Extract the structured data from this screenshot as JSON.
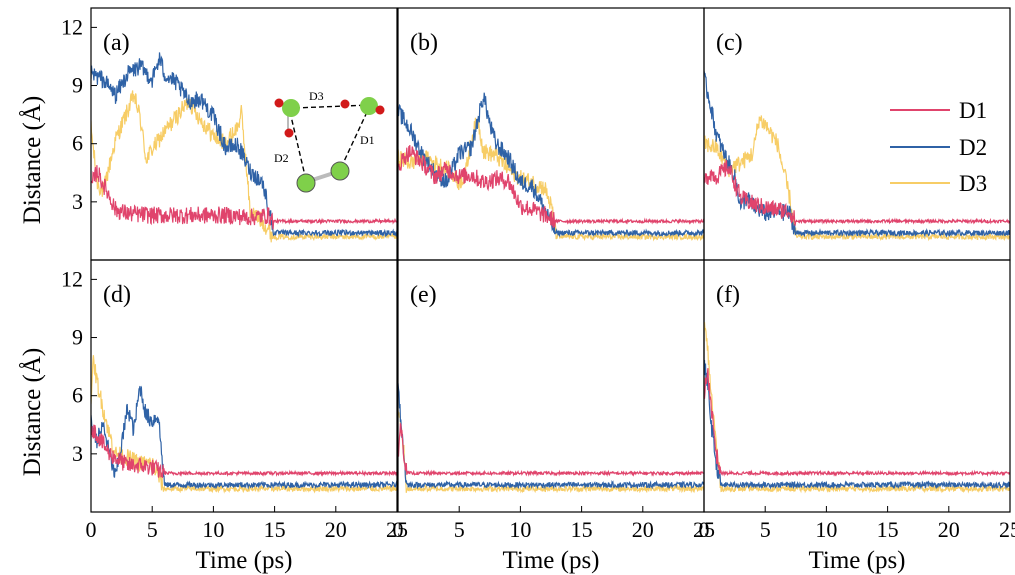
{
  "chart_data": {
    "type": "line",
    "layout": "2x3 grid of panels sharing axes",
    "xlabel": "Time (ps)",
    "ylabel": "Distance (Å)",
    "xlim": [
      0,
      25
    ],
    "ylim": [
      0,
      13
    ],
    "xticks": [
      0,
      5,
      10,
      15,
      20,
      25
    ],
    "yticks": [
      3,
      6,
      9,
      12
    ],
    "grid": false,
    "legend_placement": "top-right of panel (c)",
    "series_styles": [
      {
        "name": "D1",
        "color": "#e0446c"
      },
      {
        "name": "D2",
        "color": "#2f62a6"
      },
      {
        "name": "D3",
        "color": "#f7cd66"
      }
    ],
    "panels": [
      {
        "label": "(a)",
        "transition_time": 14.9,
        "series": [
          {
            "name": "D1",
            "points": [
              [
                0,
                3.8
              ],
              [
                0.5,
                4.6
              ],
              [
                1,
                3.9
              ],
              [
                1.5,
                3.3
              ],
              [
                2,
                2.6
              ],
              [
                3,
                2.4
              ],
              [
                5,
                2.3
              ],
              [
                8,
                2.3
              ],
              [
                11,
                2.3
              ],
              [
                13,
                2.2
              ],
              [
                14.5,
                2.3
              ],
              [
                14.9,
                2.0
              ],
              [
                25,
                2.0
              ]
            ]
          },
          {
            "name": "D2",
            "points": [
              [
                0,
                9.6
              ],
              [
                1,
                9.3
              ],
              [
                2,
                8.5
              ],
              [
                3,
                9.6
              ],
              [
                4,
                10.0
              ],
              [
                5,
                9.3
              ],
              [
                5.6,
                10.4
              ],
              [
                6,
                9.6
              ],
              [
                7,
                9.1
              ],
              [
                8,
                8.2
              ],
              [
                9,
                8.3
              ],
              [
                10,
                7.4
              ],
              [
                11,
                5.8
              ],
              [
                12,
                5.9
              ],
              [
                13,
                4.6
              ],
              [
                14,
                4.0
              ],
              [
                14.5,
                2.8
              ],
              [
                14.9,
                1.4
              ],
              [
                25,
                1.4
              ]
            ]
          },
          {
            "name": "D3",
            "points": [
              [
                0,
                6.8
              ],
              [
                0.5,
                4.0
              ],
              [
                1,
                3.5
              ],
              [
                2,
                6.2
              ],
              [
                3,
                7.7
              ],
              [
                3.5,
                8.5
              ],
              [
                4,
                7.4
              ],
              [
                4.5,
                5.2
              ],
              [
                5,
                5.7
              ],
              [
                6,
                6.6
              ],
              [
                7,
                7.4
              ],
              [
                8,
                8.2
              ],
              [
                9,
                7.2
              ],
              [
                10,
                6.4
              ],
              [
                11,
                6.0
              ],
              [
                12,
                6.9
              ],
              [
                12.3,
                7.6
              ],
              [
                13,
                2.5
              ],
              [
                14,
                2.0
              ],
              [
                14.9,
                1.2
              ],
              [
                25,
                1.2
              ]
            ]
          }
        ]
      },
      {
        "label": "(b)",
        "transition_time": 12.9,
        "series": [
          {
            "name": "D1",
            "points": [
              [
                0,
                4.8
              ],
              [
                0.5,
                5.3
              ],
              [
                1,
                5.6
              ],
              [
                2,
                5.0
              ],
              [
                3,
                4.3
              ],
              [
                4,
                4.7
              ],
              [
                5,
                4.3
              ],
              [
                6,
                4.4
              ],
              [
                7,
                4.0
              ],
              [
                8,
                4.2
              ],
              [
                9,
                4.1
              ],
              [
                10,
                2.8
              ],
              [
                11,
                2.6
              ],
              [
                12,
                2.3
              ],
              [
                12.9,
                2.0
              ],
              [
                25,
                2.0
              ]
            ]
          },
          {
            "name": "D2",
            "points": [
              [
                0,
                7.7
              ],
              [
                1,
                6.7
              ],
              [
                2,
                5.4
              ],
              [
                3,
                4.5
              ],
              [
                4,
                4.0
              ],
              [
                5,
                5.5
              ],
              [
                6,
                5.8
              ],
              [
                7,
                8.5
              ],
              [
                7.5,
                7.0
              ],
              [
                8,
                6.0
              ],
              [
                9,
                5.3
              ],
              [
                10,
                4.0
              ],
              [
                11,
                3.8
              ],
              [
                12,
                2.6
              ],
              [
                12.6,
                1.8
              ],
              [
                12.9,
                1.4
              ],
              [
                25,
                1.4
              ]
            ]
          },
          {
            "name": "D3",
            "points": [
              [
                0,
                5.3
              ],
              [
                1,
                5.0
              ],
              [
                2,
                5.3
              ],
              [
                3,
                5.0
              ],
              [
                4,
                4.7
              ],
              [
                5,
                4.0
              ],
              [
                5.5,
                4.4
              ],
              [
                6,
                6.2
              ],
              [
                6.5,
                7.3
              ],
              [
                7,
                5.6
              ],
              [
                8,
                5.4
              ],
              [
                9,
                4.7
              ],
              [
                10,
                4.2
              ],
              [
                11,
                4.0
              ],
              [
                12,
                3.7
              ],
              [
                12.6,
                2.6
              ],
              [
                12.9,
                1.2
              ],
              [
                25,
                1.2
              ]
            ]
          }
        ]
      },
      {
        "label": "(c)",
        "transition_time": 7.5,
        "series": [
          {
            "name": "D1",
            "points": [
              [
                0,
                4.0
              ],
              [
                0.5,
                4.5
              ],
              [
                1,
                4.3
              ],
              [
                2,
                4.8
              ],
              [
                3,
                3.2
              ],
              [
                4,
                2.9
              ],
              [
                5,
                2.7
              ],
              [
                6,
                2.6
              ],
              [
                7,
                2.5
              ],
              [
                7.5,
                2.0
              ],
              [
                25,
                2.0
              ]
            ]
          },
          {
            "name": "D2",
            "points": [
              [
                0,
                9.4
              ],
              [
                0.5,
                8.1
              ],
              [
                1,
                6.5
              ],
              [
                1.5,
                5.7
              ],
              [
                2,
                5.0
              ],
              [
                2.5,
                4.3
              ],
              [
                3,
                2.8
              ],
              [
                3.5,
                3.2
              ],
              [
                4,
                2.8
              ],
              [
                5,
                2.4
              ],
              [
                6,
                2.5
              ],
              [
                7,
                2.4
              ],
              [
                7.5,
                1.4
              ],
              [
                25,
                1.4
              ]
            ]
          },
          {
            "name": "D3",
            "points": [
              [
                0,
                6.0
              ],
              [
                1,
                5.8
              ],
              [
                2,
                4.7
              ],
              [
                3,
                5.0
              ],
              [
                4,
                5.5
              ],
              [
                4.5,
                7.3
              ],
              [
                5,
                7.0
              ],
              [
                6,
                6.0
              ],
              [
                7,
                3.2
              ],
              [
                7.5,
                1.2
              ],
              [
                25,
                1.2
              ]
            ]
          }
        ]
      },
      {
        "label": "(d)",
        "transition_time": 6.0,
        "series": [
          {
            "name": "D1",
            "points": [
              [
                0,
                4.4
              ],
              [
                0.5,
                4.0
              ],
              [
                1,
                3.5
              ],
              [
                1.5,
                3.0
              ],
              [
                2,
                2.8
              ],
              [
                3,
                2.4
              ],
              [
                4,
                2.4
              ],
              [
                5,
                2.3
              ],
              [
                6,
                2.0
              ],
              [
                25,
                2.0
              ]
            ]
          },
          {
            "name": "D2",
            "points": [
              [
                0,
                4.6
              ],
              [
                0.5,
                3.7
              ],
              [
                1,
                4.5
              ],
              [
                1.5,
                3.0
              ],
              [
                2,
                1.8
              ],
              [
                2.5,
                3.5
              ],
              [
                3,
                5.4
              ],
              [
                3.5,
                4.2
              ],
              [
                4,
                6.5
              ],
              [
                4.5,
                5.0
              ],
              [
                5,
                4.7
              ],
              [
                5.5,
                5.0
              ],
              [
                6,
                1.4
              ],
              [
                25,
                1.4
              ]
            ]
          },
          {
            "name": "D3",
            "points": [
              [
                0,
                6.0
              ],
              [
                0.2,
                7.8
              ],
              [
                0.5,
                6.7
              ],
              [
                1,
                5.3
              ],
              [
                1.5,
                4.0
              ],
              [
                2,
                3.0
              ],
              [
                3,
                2.8
              ],
              [
                4,
                2.5
              ],
              [
                5,
                2.5
              ],
              [
                6,
                1.2
              ],
              [
                25,
                1.2
              ]
            ]
          }
        ]
      },
      {
        "label": "(e)",
        "transition_time": 0.7,
        "series": [
          {
            "name": "D1",
            "points": [
              [
                0,
                3.0
              ],
              [
                0.2,
                4.5
              ],
              [
                0.5,
                3.0
              ],
              [
                0.7,
                2.0
              ],
              [
                25,
                2.0
              ]
            ]
          },
          {
            "name": "D2",
            "points": [
              [
                0,
                6.9
              ],
              [
                0.2,
                5.0
              ],
              [
                0.4,
                3.5
              ],
              [
                0.7,
                1.4
              ],
              [
                25,
                1.4
              ]
            ]
          },
          {
            "name": "D3",
            "points": [
              [
                0,
                5.4
              ],
              [
                0.3,
                4.0
              ],
              [
                0.5,
                3.0
              ],
              [
                0.7,
                1.2
              ],
              [
                25,
                1.2
              ]
            ]
          }
        ]
      },
      {
        "label": "(f)",
        "transition_time": 1.4,
        "series": [
          {
            "name": "D1",
            "points": [
              [
                0,
                6.0
              ],
              [
                0.3,
                7.2
              ],
              [
                0.6,
                5.5
              ],
              [
                1,
                3.0
              ],
              [
                1.4,
                2.0
              ],
              [
                25,
                2.0
              ]
            ]
          },
          {
            "name": "D2",
            "points": [
              [
                0,
                7.7
              ],
              [
                0.3,
                6.5
              ],
              [
                0.6,
                4.5
              ],
              [
                1,
                2.5
              ],
              [
                1.4,
                1.4
              ],
              [
                25,
                1.4
              ]
            ]
          },
          {
            "name": "D3",
            "points": [
              [
                0,
                9.7
              ],
              [
                0.3,
                8.4
              ],
              [
                0.6,
                6.0
              ],
              [
                1,
                3.5
              ],
              [
                1.4,
                1.2
              ],
              [
                25,
                1.2
              ]
            ]
          }
        ]
      }
    ]
  },
  "legend": {
    "items": [
      {
        "label": "D1",
        "color": "#e0446c"
      },
      {
        "label": "D2",
        "color": "#2f62a6"
      },
      {
        "label": "D3",
        "color": "#f7cd66"
      }
    ]
  },
  "inset": {
    "labels": {
      "d1": "D1",
      "d2": "D2",
      "d3": "D3"
    },
    "atom_colors": {
      "green": "#7fd04a",
      "red": "#d11a1a",
      "bond": "#bbbbbb"
    }
  }
}
